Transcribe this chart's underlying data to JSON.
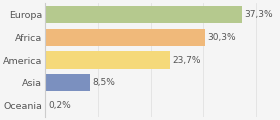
{
  "categories": [
    "Europa",
    "Africa",
    "America",
    "Asia",
    "Oceania"
  ],
  "values": [
    37.3,
    30.3,
    23.7,
    8.5,
    0.2
  ],
  "labels": [
    "37,3%",
    "30,3%",
    "23,7%",
    "8,5%",
    "0,2%"
  ],
  "bar_colors": [
    "#b5c98e",
    "#f0b97a",
    "#f5d97a",
    "#7b90bf",
    "#f5d97a"
  ],
  "background_color": "#f5f5f5",
  "xlim": [
    0,
    44
  ],
  "label_fontsize": 6.5,
  "tick_fontsize": 6.8,
  "bar_height": 0.75,
  "grid_color": "#dddddd",
  "text_color": "#555555",
  "spine_color": "#cccccc"
}
